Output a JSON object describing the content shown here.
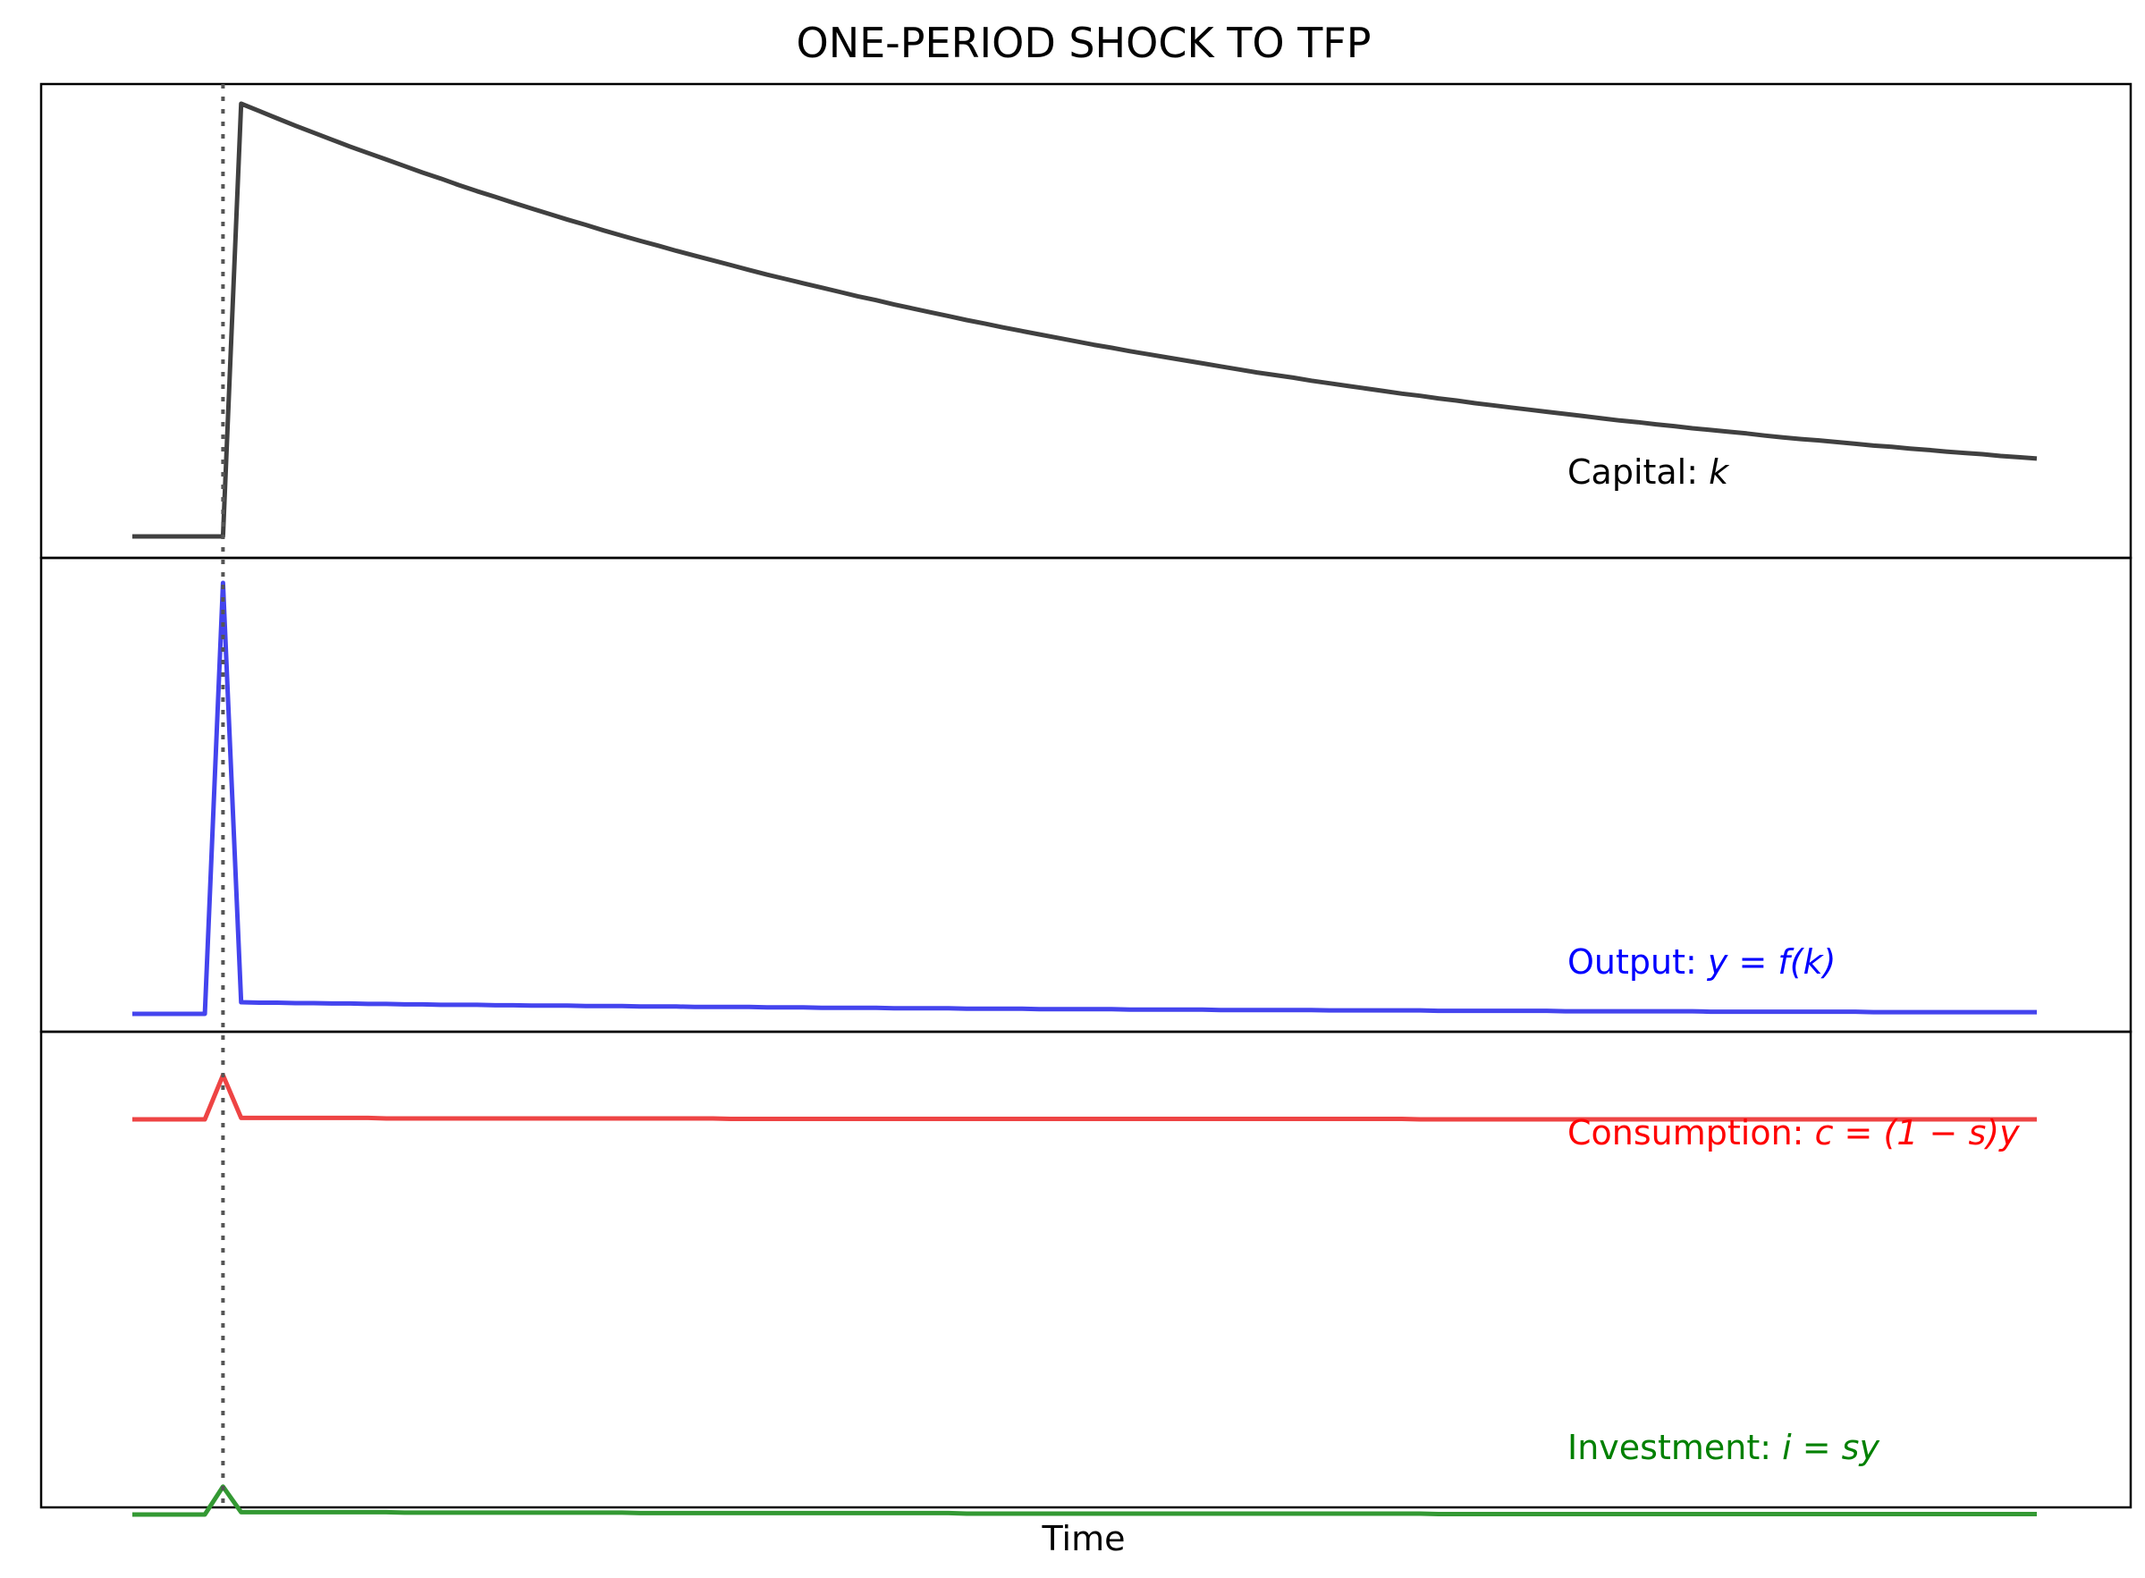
{
  "chart_data": {
    "type": "line",
    "title": "ONE-PERIOD SHOCK TO TFP",
    "xlabel": "Time",
    "ylabel": "",
    "grid": false,
    "x_ticks_shown": false,
    "y_ticks_shown": false,
    "shock_period": 5,
    "x": [
      0,
      1,
      2,
      3,
      4,
      5,
      6,
      7,
      8,
      9,
      10,
      11,
      12,
      13,
      14,
      15,
      16,
      17,
      18,
      19,
      20,
      21,
      22,
      23,
      24,
      25,
      26,
      27,
      28,
      29,
      30,
      31,
      32,
      33,
      34,
      35,
      36,
      37,
      38,
      39,
      40,
      41,
      42,
      43,
      44,
      45,
      46,
      47,
      48,
      49,
      50,
      51,
      52,
      53,
      54,
      55,
      56,
      57,
      58,
      59,
      60,
      61,
      62,
      63,
      64,
      65,
      66,
      67,
      68,
      69,
      70,
      71,
      72,
      73,
      74,
      75,
      76,
      77,
      78,
      79,
      80,
      81,
      82,
      83,
      84,
      85,
      86,
      87,
      88,
      89,
      90,
      91,
      92,
      93,
      94,
      95,
      96,
      97,
      98,
      99,
      100,
      101,
      102,
      103,
      104,
      105
    ],
    "panels": [
      {
        "label_text": "Capital: ",
        "label_math": "k",
        "label_color": "#000000",
        "series": [
          {
            "color": "#404040",
            "values": [
              0,
              0,
              0,
              0,
              0,
              0,
              1,
              0.983,
              0.966,
              0.949,
              0.933,
              0.917,
              0.901,
              0.886,
              0.871,
              0.856,
              0.841,
              0.827,
              0.812,
              0.798,
              0.785,
              0.771,
              0.758,
              0.745,
              0.732,
              0.72,
              0.707,
              0.695,
              0.683,
              0.672,
              0.66,
              0.649,
              0.638,
              0.627,
              0.616,
              0.605,
              0.595,
              0.585,
              0.575,
              0.565,
              0.555,
              0.546,
              0.536,
              0.527,
              0.518,
              0.509,
              0.5,
              0.492,
              0.483,
              0.475,
              0.467,
              0.459,
              0.451,
              0.443,
              0.436,
              0.428,
              0.421,
              0.414,
              0.407,
              0.4,
              0.393,
              0.386,
              0.379,
              0.373,
              0.367,
              0.36,
              0.354,
              0.348,
              0.342,
              0.336,
              0.33,
              0.325,
              0.319,
              0.314,
              0.308,
              0.303,
              0.298,
              0.293,
              0.288,
              0.283,
              0.278,
              0.273,
              0.268,
              0.264,
              0.259,
              0.255,
              0.25,
              0.246,
              0.242,
              0.238,
              0.233,
              0.229,
              0.225,
              0.222,
              0.218,
              0.214,
              0.21,
              0.207,
              0.203,
              0.2,
              0.196,
              0.193,
              0.19,
              0.186,
              0.183,
              0.18
            ]
          }
        ],
        "ylim": [
          -0.05,
          1.05
        ]
      },
      {
        "label_text": "Output: ",
        "label_math": "y = f(k)",
        "label_color": "#0000ff",
        "series": [
          {
            "color": "#4444ee",
            "values": [
              0,
              0,
              0,
              0,
              0,
              1,
              0.027,
              0.026,
              0.026,
              0.025,
              0.025,
              0.024,
              0.024,
              0.023,
              0.023,
              0.022,
              0.022,
              0.021,
              0.021,
              0.021,
              0.02,
              0.02,
              0.019,
              0.019,
              0.019,
              0.018,
              0.018,
              0.018,
              0.017,
              0.017,
              0.017,
              0.016,
              0.016,
              0.016,
              0.016,
              0.015,
              0.015,
              0.015,
              0.014,
              0.014,
              0.014,
              0.014,
              0.013,
              0.013,
              0.013,
              0.013,
              0.012,
              0.012,
              0.012,
              0.012,
              0.011,
              0.011,
              0.011,
              0.011,
              0.011,
              0.01,
              0.01,
              0.01,
              0.01,
              0.01,
              0.009,
              0.009,
              0.009,
              0.009,
              0.009,
              0.009,
              0.008,
              0.008,
              0.008,
              0.008,
              0.008,
              0.008,
              0.007,
              0.007,
              0.007,
              0.007,
              0.007,
              0.007,
              0.007,
              0.006,
              0.006,
              0.006,
              0.006,
              0.006,
              0.006,
              0.006,
              0.006,
              0.005,
              0.005,
              0.005,
              0.005,
              0.005,
              0.005,
              0.005,
              0.005,
              0.005,
              0.004,
              0.004,
              0.004,
              0.004,
              0.004,
              0.004,
              0.004,
              0.004,
              0.004,
              0.004
            ]
          }
        ],
        "ylim": [
          -0.05,
          1.05
        ]
      },
      {
        "label_text": "Consumption: ",
        "label_math": "c = (1 − s)y",
        "label_color": "#ff0000",
        "series": [
          {
            "color": "#ee4444",
            "values": [
              0.85,
              0.85,
              0.85,
              0.85,
              0.85,
              0.945,
              0.853,
              0.853,
              0.853,
              0.853,
              0.853,
              0.853,
              0.853,
              0.853,
              0.852,
              0.852,
              0.852,
              0.852,
              0.852,
              0.852,
              0.852,
              0.852,
              0.852,
              0.852,
              0.852,
              0.852,
              0.852,
              0.852,
              0.852,
              0.852,
              0.852,
              0.852,
              0.852,
              0.851,
              0.851,
              0.851,
              0.851,
              0.851,
              0.851,
              0.851,
              0.851,
              0.851,
              0.851,
              0.851,
              0.851,
              0.851,
              0.851,
              0.851,
              0.851,
              0.851,
              0.851,
              0.851,
              0.851,
              0.851,
              0.851,
              0.851,
              0.851,
              0.851,
              0.851,
              0.851,
              0.851,
              0.851,
              0.851,
              0.851,
              0.851,
              0.851,
              0.851,
              0.851,
              0.851,
              0.851,
              0.851,
              0.85,
              0.85,
              0.85,
              0.85,
              0.85,
              0.85,
              0.85,
              0.85,
              0.85,
              0.85,
              0.85,
              0.85,
              0.85,
              0.85,
              0.85,
              0.85,
              0.85,
              0.85,
              0.85,
              0.85,
              0.85,
              0.85,
              0.85,
              0.85,
              0.85,
              0.85,
              0.85,
              0.85,
              0.85,
              0.85,
              0.85,
              0.85,
              0.85,
              0.85,
              0.85
            ]
          },
          {
            "color": "#339933",
            "values": [
              0,
              0,
              0,
              0,
              0,
              0.06,
              0.005,
              0.005,
              0.005,
              0.005,
              0.005,
              0.005,
              0.005,
              0.005,
              0.005,
              0.004,
              0.004,
              0.004,
              0.004,
              0.004,
              0.004,
              0.004,
              0.004,
              0.004,
              0.004,
              0.004,
              0.004,
              0.004,
              0.003,
              0.003,
              0.003,
              0.003,
              0.003,
              0.003,
              0.003,
              0.003,
              0.003,
              0.003,
              0.003,
              0.003,
              0.003,
              0.003,
              0.003,
              0.003,
              0.003,
              0.003,
              0.002,
              0.002,
              0.002,
              0.002,
              0.002,
              0.002,
              0.002,
              0.002,
              0.002,
              0.002,
              0.002,
              0.002,
              0.002,
              0.002,
              0.002,
              0.002,
              0.002,
              0.002,
              0.002,
              0.002,
              0.002,
              0.002,
              0.002,
              0.002,
              0.002,
              0.002,
              0.001,
              0.001,
              0.001,
              0.001,
              0.001,
              0.001,
              0.001,
              0.001,
              0.001,
              0.001,
              0.001,
              0.001,
              0.001,
              0.001,
              0.001,
              0.001,
              0.001,
              0.001,
              0.001,
              0.001,
              0.001,
              0.001,
              0.001,
              0.001,
              0.001,
              0.001,
              0.001,
              0.001,
              0.001,
              0.001,
              0.001,
              0.001,
              0.001,
              0.001
            ]
          }
        ],
        "ylim": [
          -0.05,
          1.05
        ],
        "second_label_text": "Investment: ",
        "second_label_math": "i = sy",
        "second_label_color": "#008000"
      }
    ]
  }
}
